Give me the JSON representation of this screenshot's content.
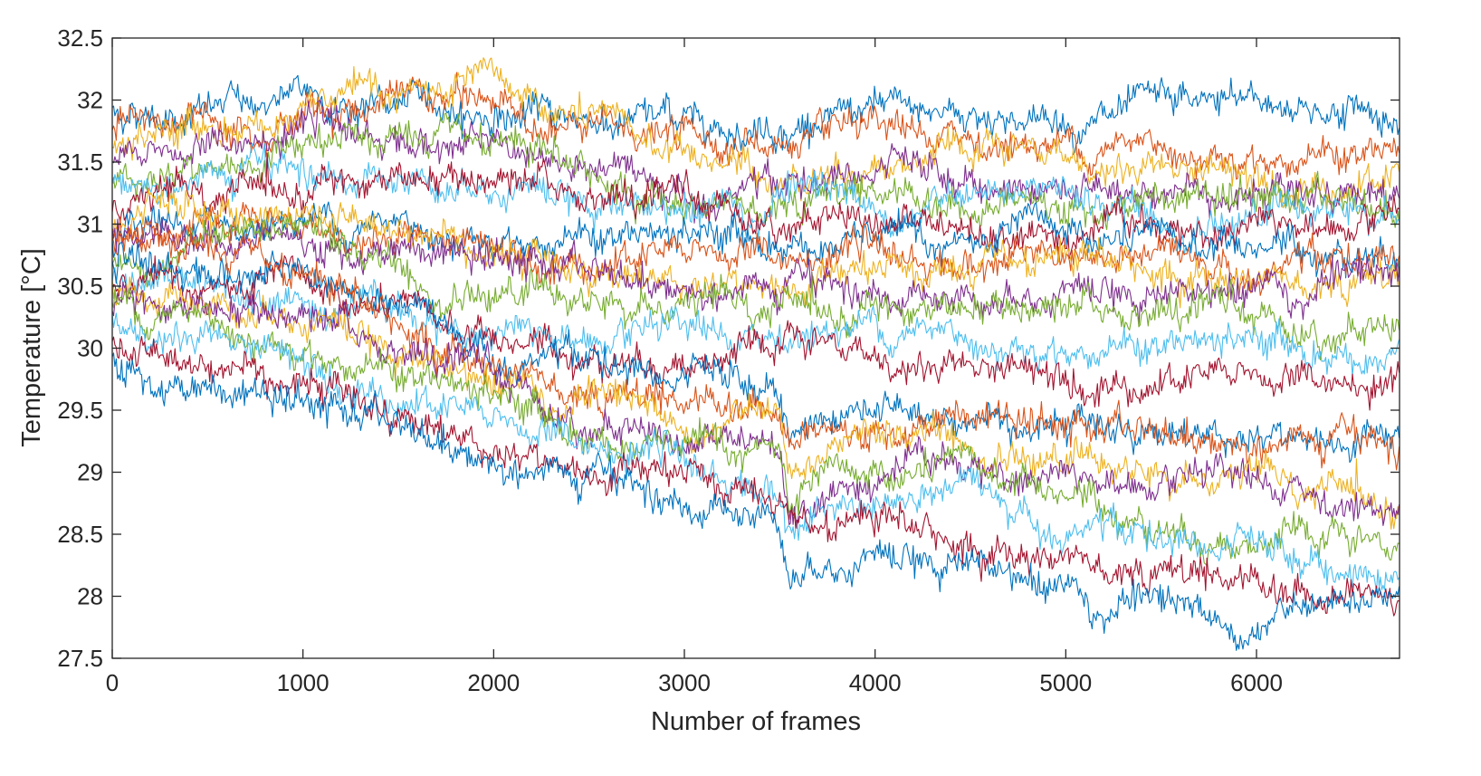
{
  "chart_data": {
    "type": "line",
    "title": "",
    "xlabel": "Number of frames",
    "ylabel": "Temperature [°C]",
    "xlim": [
      0,
      6750
    ],
    "ylim": [
      27.5,
      32.5
    ],
    "xticks": [
      0,
      1000,
      2000,
      3000,
      4000,
      5000,
      6000
    ],
    "xtick_labels": [
      "0",
      "1000",
      "2000",
      "3000",
      "4000",
      "5000",
      "6000"
    ],
    "yticks": [
      27.5,
      28,
      28.5,
      29,
      29.5,
      30,
      30.5,
      31,
      31.5,
      32,
      32.5
    ],
    "ytick_labels": [
      "27.5",
      "28",
      "28.5",
      "29",
      "29.5",
      "30",
      "30.5",
      "31",
      "31.5",
      "32",
      "32.5"
    ],
    "grid": false,
    "legend": "none",
    "colors": [
      "#0072BD",
      "#D95319",
      "#EDB120",
      "#7E2F8E",
      "#77AC30",
      "#4DBEEE",
      "#A2142F"
    ],
    "noise_amplitude": 0.09,
    "x": [
      0,
      500,
      1000,
      1500,
      2000,
      2500,
      3000,
      3400,
      3500,
      3550,
      4000,
      4500,
      5000,
      5500,
      6000,
      6500,
      6750
    ],
    "series": [
      {
        "values": [
          31.9,
          31.95,
          32.0,
          31.95,
          31.9,
          31.85,
          31.85,
          31.85,
          31.85,
          31.85,
          31.85,
          31.9,
          31.85,
          31.85,
          31.95,
          31.95,
          31.85
        ]
      },
      {
        "values": [
          31.75,
          31.85,
          31.95,
          32.0,
          31.95,
          31.75,
          31.7,
          31.65,
          31.65,
          31.65,
          31.6,
          31.65,
          31.65,
          31.65,
          31.6,
          31.55,
          31.55
        ]
      },
      {
        "values": [
          31.6,
          31.75,
          31.9,
          32.05,
          32.0,
          31.8,
          31.55,
          31.4,
          31.4,
          31.4,
          31.55,
          31.5,
          31.5,
          31.45,
          31.45,
          31.4,
          31.4
        ]
      },
      {
        "values": [
          31.5,
          31.6,
          31.7,
          31.7,
          31.6,
          31.4,
          31.3,
          31.3,
          31.3,
          31.3,
          31.4,
          31.3,
          31.3,
          31.3,
          31.3,
          31.3,
          31.25
        ]
      },
      {
        "values": [
          31.35,
          31.45,
          31.55,
          31.65,
          31.55,
          31.35,
          31.2,
          31.2,
          31.25,
          31.25,
          31.3,
          31.2,
          31.2,
          31.2,
          31.2,
          31.15,
          31.1
        ]
      },
      {
        "values": [
          31.3,
          31.35,
          31.4,
          31.4,
          31.35,
          31.25,
          31.15,
          31.15,
          31.2,
          31.2,
          31.15,
          31.1,
          31.1,
          31.1,
          31.1,
          31.1,
          31.05
        ]
      },
      {
        "values": [
          31.1,
          31.2,
          31.3,
          31.35,
          31.3,
          31.2,
          31.1,
          31.1,
          31.1,
          31.1,
          31.05,
          31.0,
          31.0,
          31.0,
          31.0,
          30.95,
          30.95
        ]
      },
      {
        "values": [
          30.85,
          30.95,
          31.05,
          31.0,
          30.95,
          30.9,
          30.85,
          30.85,
          30.85,
          30.85,
          30.85,
          30.8,
          30.85,
          30.8,
          30.8,
          30.8,
          30.8
        ]
      },
      {
        "values": [
          30.9,
          30.9,
          30.9,
          30.9,
          30.85,
          30.8,
          30.75,
          30.75,
          30.7,
          30.7,
          30.7,
          30.7,
          30.7,
          30.7,
          30.7,
          30.7,
          30.7
        ]
      },
      {
        "values": [
          31.0,
          31.05,
          31.1,
          31.0,
          30.85,
          30.65,
          30.55,
          30.5,
          30.5,
          30.5,
          30.55,
          30.55,
          30.6,
          30.6,
          30.6,
          30.6,
          30.6
        ]
      },
      {
        "values": [
          30.95,
          30.95,
          30.9,
          30.8,
          30.7,
          30.6,
          30.5,
          30.45,
          30.45,
          30.45,
          30.45,
          30.45,
          30.5,
          30.5,
          30.5,
          30.5,
          30.5
        ]
      },
      {
        "values": [
          30.75,
          30.8,
          30.8,
          30.65,
          30.5,
          30.35,
          30.3,
          30.3,
          30.3,
          30.3,
          30.3,
          30.3,
          30.25,
          30.25,
          30.2,
          30.2,
          30.15
        ]
      },
      {
        "values": [
          30.6,
          30.55,
          30.45,
          30.3,
          30.15,
          30.05,
          30.0,
          30.0,
          30.1,
          30.1,
          30.2,
          30.1,
          30.05,
          30.0,
          30.0,
          29.95,
          29.9
        ]
      },
      {
        "values": [
          30.5,
          30.45,
          30.4,
          30.25,
          30.05,
          29.95,
          29.95,
          29.9,
          29.95,
          29.95,
          29.9,
          29.85,
          29.85,
          29.8,
          29.75,
          29.7,
          29.6
        ]
      },
      {
        "values": [
          30.7,
          30.65,
          30.55,
          30.3,
          30.0,
          29.9,
          29.7,
          29.65,
          29.6,
          29.35,
          29.55,
          29.45,
          29.45,
          29.35,
          29.3,
          29.25,
          29.2
        ]
      },
      {
        "values": [
          30.9,
          30.75,
          30.45,
          30.15,
          29.9,
          29.7,
          29.6,
          29.6,
          29.6,
          29.3,
          29.4,
          29.45,
          29.35,
          29.3,
          29.25,
          29.2,
          29.15
        ]
      },
      {
        "values": [
          30.5,
          30.4,
          30.3,
          30.05,
          29.75,
          29.55,
          29.4,
          29.4,
          29.35,
          28.8,
          29.2,
          29.35,
          29.1,
          28.95,
          28.9,
          28.8,
          28.75
        ]
      },
      {
        "values": [
          30.35,
          30.3,
          30.2,
          29.95,
          29.7,
          29.45,
          29.25,
          29.3,
          29.25,
          28.75,
          29.05,
          29.1,
          28.95,
          28.85,
          28.8,
          28.75,
          28.7
        ]
      },
      {
        "values": [
          30.4,
          30.25,
          30.05,
          29.8,
          29.55,
          29.3,
          29.15,
          29.15,
          29.15,
          28.7,
          28.9,
          29.0,
          28.8,
          28.6,
          28.45,
          28.35,
          28.3
        ]
      },
      {
        "values": [
          30.2,
          30.1,
          29.95,
          29.7,
          29.4,
          29.2,
          29.0,
          28.9,
          28.85,
          28.55,
          28.7,
          28.85,
          28.6,
          28.45,
          28.3,
          28.2,
          28.15
        ]
      },
      {
        "values": [
          30.0,
          29.9,
          29.8,
          29.5,
          29.2,
          29.0,
          28.9,
          28.75,
          28.7,
          28.4,
          28.5,
          28.4,
          28.35,
          28.25,
          28.15,
          28.05,
          28.0
        ]
      },
      {
        "values": [
          29.9,
          29.65,
          29.55,
          29.35,
          29.1,
          28.9,
          28.75,
          28.7,
          28.65,
          28.25,
          28.35,
          28.35,
          28.05,
          27.85,
          27.8,
          27.8,
          27.8
        ]
      }
    ]
  }
}
